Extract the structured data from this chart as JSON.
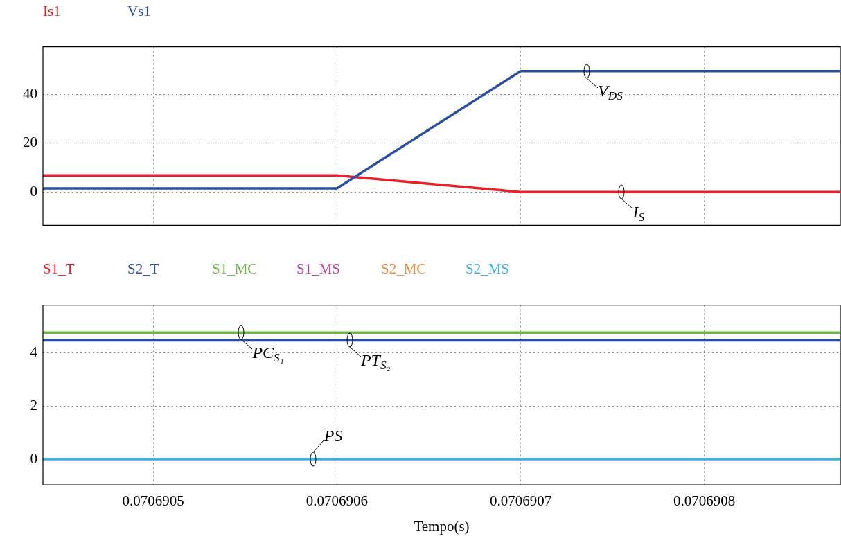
{
  "chart_data": [
    {
      "type": "line",
      "x": [
        0.07069044,
        0.0706906,
        0.0706907,
        0.070690874
      ],
      "series": [
        {
          "name": "Is1",
          "color": "#e8202a",
          "values": [
            6.8,
            6.8,
            0,
            0
          ]
        },
        {
          "name": "Vs1",
          "color": "#2a4fa0",
          "values": [
            1.5,
            1.5,
            49.6,
            49.6
          ]
        }
      ],
      "xlim": [
        0.07069044,
        0.070690874
      ],
      "xticks": [
        0.0706905,
        0.0706906,
        0.0706907,
        0.0706908
      ],
      "ylim": [
        -13.7,
        59.6
      ],
      "yticks": [
        0,
        20,
        40
      ],
      "tick_labels": "y",
      "grid": true,
      "legend": "top left",
      "marker": "none",
      "line_style": "solid",
      "annotations": [
        {
          "text": "V$_{DS}$",
          "x": 0.070690736,
          "y": 49.6
        },
        {
          "text": "I$_{S}$",
          "x": 0.070690755,
          "y": 0
        }
      ]
    },
    {
      "type": "line",
      "x": [
        0.07069044,
        0.070690874
      ],
      "series": [
        {
          "name": "S1_T",
          "color": "#e8202a",
          "values": [
            null,
            null
          ]
        },
        {
          "name": "S2_T",
          "color": "#2a4fa0",
          "values": [
            4.46,
            4.46
          ]
        },
        {
          "name": "S1_MC",
          "color": "#6ab344",
          "values": [
            4.75,
            4.75
          ]
        },
        {
          "name": "S1_MS",
          "color": "#b5449c",
          "values": [
            null,
            null
          ]
        },
        {
          "name": "S2_MC",
          "color": "#f08a3a",
          "values": [
            null,
            null
          ]
        },
        {
          "name": "S2_MS",
          "color": "#3ab0e0",
          "values": [
            0,
            0
          ]
        }
      ],
      "xlim": [
        0.07069044,
        0.070690874
      ],
      "xticks": [
        0.0706905,
        0.0706906,
        0.0706907,
        0.0706908
      ],
      "ylim": [
        -0.96,
        5.78
      ],
      "yticks": [
        0,
        2,
        4
      ],
      "grid": true,
      "legend": "top left",
      "marker": "none",
      "line_style": "solid",
      "xlabel": "Tempo(s)",
      "annotations": [
        {
          "text": "PC$_{S₁}$",
          "x": 0.070690548,
          "y": 4.75
        },
        {
          "text": "PT$_{S₂}$",
          "x": 0.070690607,
          "y": 4.46
        },
        {
          "text": "PS",
          "x": 0.070690587,
          "y": 0
        }
      ]
    }
  ]
}
